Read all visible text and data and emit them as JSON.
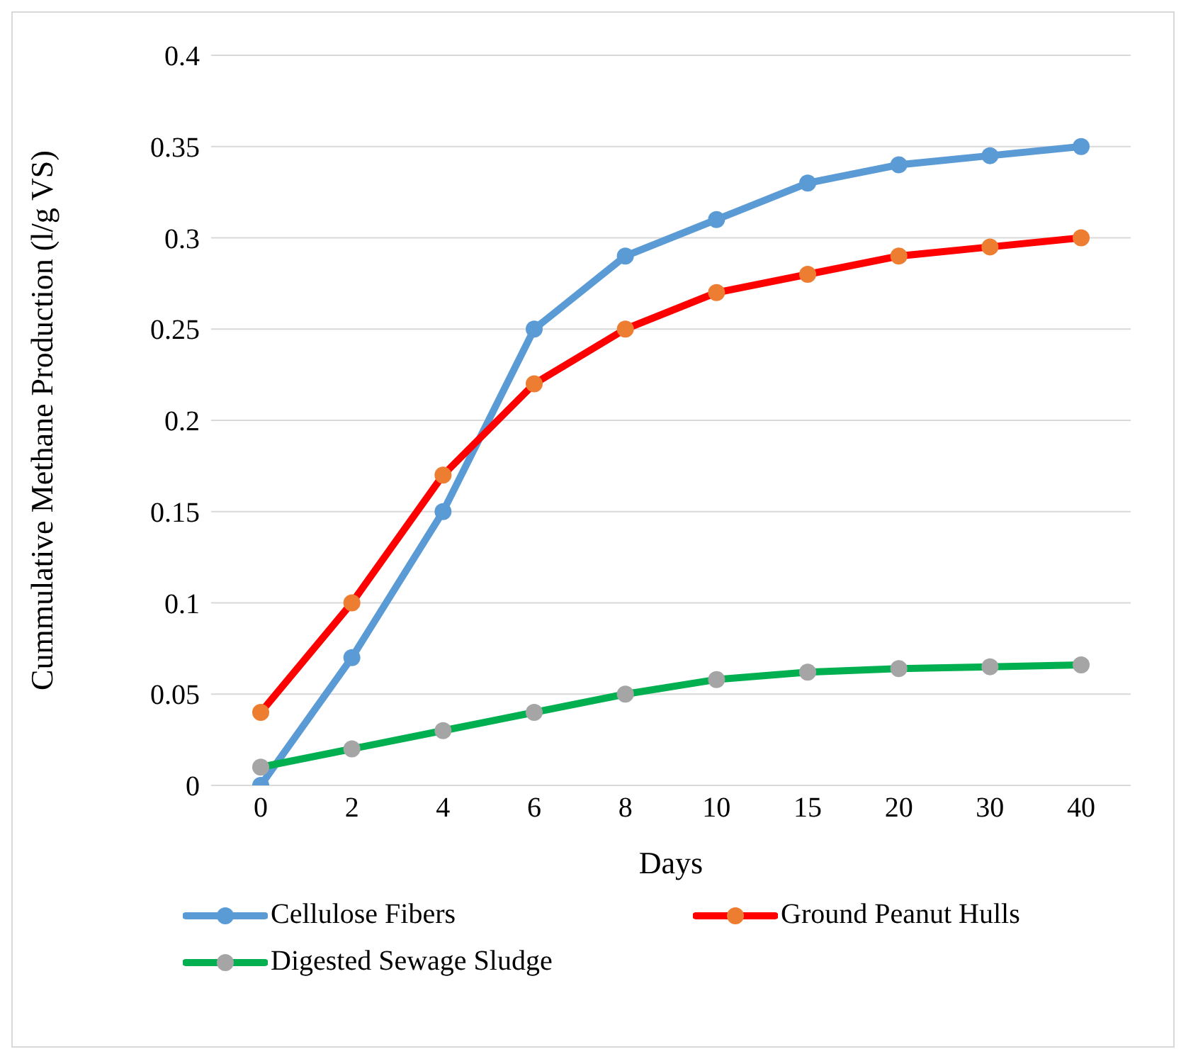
{
  "chart_data": {
    "type": "line",
    "xlabel": "Days",
    "ylabel": "Cummulative Methane Production (l/g VS)",
    "categories": [
      "0",
      "2",
      "4",
      "6",
      "8",
      "10",
      "15",
      "20",
      "30",
      "40"
    ],
    "series": [
      {
        "name": "Cellulose Fibers",
        "color": "#5b9bd5",
        "colors": [
          "#5b9bd5",
          "#5b9bd5",
          "#5b9bd5",
          "#5b9bd5",
          "#5b9bd5",
          "#5b9bd5",
          "#5b9bd5",
          "#5b9bd5",
          "#5b9bd5",
          "#5b9bd5"
        ],
        "values": [
          0,
          0.07,
          0.15,
          0.25,
          0.29,
          0.31,
          0.33,
          0.34,
          0.345,
          0.35
        ]
      },
      {
        "name": "Ground Peanut Hulls",
        "color": "#ff0000",
        "colors": [
          "#ed7d31",
          "#ed7d31",
          "#ed7d31",
          "#ed7d31",
          "#ed7d31",
          "#ed7d31",
          "#ed7d31",
          "#ed7d31",
          "#ed7d31",
          "#ed7d31"
        ],
        "values": [
          0.04,
          0.1,
          0.17,
          0.22,
          0.25,
          0.27,
          0.28,
          0.29,
          0.295,
          0.3
        ]
      },
      {
        "name": "Digested Sewage Sludge",
        "color": "#00b050",
        "colors": [
          "#a5a5a5",
          "#a5a5a5",
          "#a5a5a5",
          "#a5a5a5",
          "#a5a5a5",
          "#a5a5a5",
          "#a5a5a5",
          "#a5a5a5",
          "#a5a5a5",
          "#a5a5a5"
        ],
        "values": [
          0.01,
          0.02,
          0.03,
          0.04,
          0.05,
          0.058,
          0.062,
          0.064,
          0.065,
          0.066
        ]
      }
    ],
    "ylim": [
      0,
      0.4
    ],
    "yticks": [
      0,
      0.05,
      0.1,
      0.15,
      0.2,
      0.25,
      0.3,
      0.35,
      0.4
    ],
    "grid": "y",
    "legend": "bottom",
    "marker": "circle",
    "line_style": "solid"
  }
}
